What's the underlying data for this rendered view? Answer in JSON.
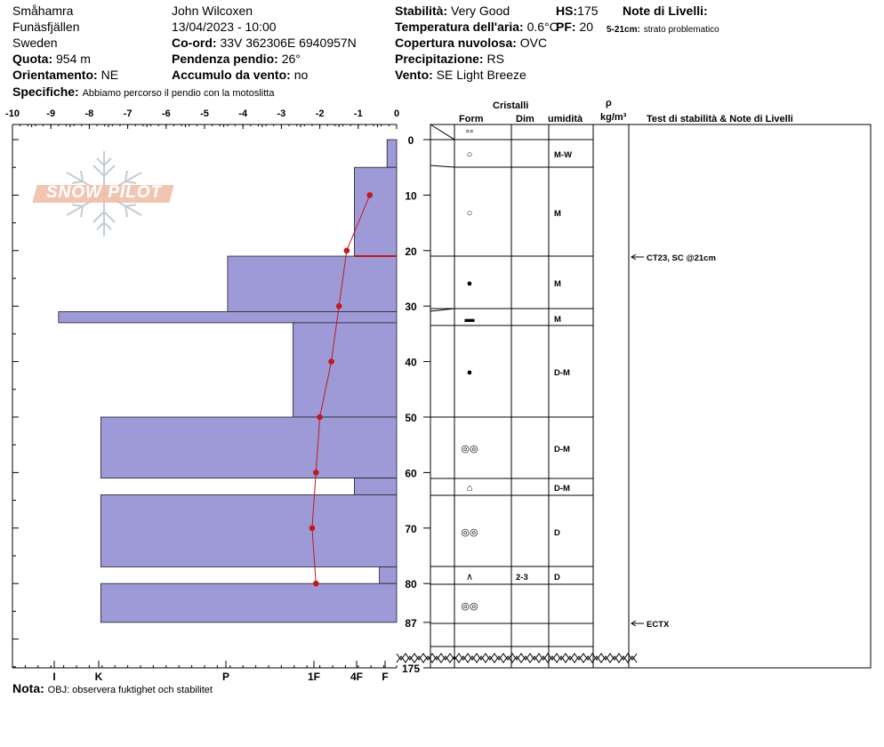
{
  "header": {
    "col1": {
      "location": "Småhamra",
      "region": "Funäsfjällen",
      "country": "Sweden",
      "quota_label": "Quota:",
      "quota_value": "954 m",
      "orient_label": "Orientamento:",
      "orient_value": "NE"
    },
    "col2": {
      "observer": "John Wilcoxen",
      "datetime": "13/04/2023 - 10:00",
      "coord_label": "Co-ord:",
      "coord_value": "33V 362306E 6940957N",
      "slope_label": "Pendenza pendio:",
      "slope_value": "26°",
      "wind_acc_label": "Accumulo da vento:",
      "wind_acc_value": "no"
    },
    "col3": {
      "stab_label": "Stabilità:",
      "stab_value": "Very Good",
      "temp_label": "Temperatura dell'aria:",
      "temp_value": "0.6°C",
      "cloud_label": "Copertura nuvolosa:",
      "cloud_value": "OVC",
      "precip_label": "Precipitazione:",
      "precip_value": "RS",
      "wind_label": "Vento:",
      "wind_value": "SE  Light Breeze"
    },
    "col4": {
      "hs_label": "HS:",
      "hs_value": "175",
      "pf_label": "PF:",
      "pf_value": "20"
    },
    "notes": {
      "title": "Note di Livelli:",
      "entry_depth": "5-21cm:",
      "entry_text": "strato problematico"
    },
    "specifiche_label": "Specifiche:",
    "specifiche_value": "Abbiamo percorso il pendio con la motoslitta",
    "nota_label": "Nota:",
    "nota_value": "OBJ: observera fuktighet och stabilitet"
  },
  "table_headers": {
    "cristalli": "Cristalli",
    "form": "Form",
    "dim": "Dim",
    "umidita": "umidità",
    "rho": "ρ",
    "density_unit": "kg/m³",
    "tests": "Test di stabilità & Note di Livelli"
  },
  "chart_data": {
    "type": "snow_profile",
    "top_axis": {
      "label_values": [
        "-10",
        "-9",
        "-8",
        "-7",
        "-6",
        "-5",
        "-4",
        "-3",
        "-2",
        "-1",
        "0"
      ]
    },
    "hardness_axis": [
      "I",
      "K",
      "P",
      "1F",
      "4F",
      "F"
    ],
    "depth_ticks": [
      "0",
      "10",
      "20",
      "30",
      "40",
      "50",
      "60",
      "70",
      "80",
      "87",
      "175"
    ],
    "hardness_layers": [
      {
        "top": 0,
        "bottom": 5,
        "hardness": 0.25
      },
      {
        "top": 5,
        "bottom": 21,
        "hardness": 1.1
      },
      {
        "top": 21,
        "bottom": 31,
        "hardness": 4.4
      },
      {
        "top": 31,
        "bottom": 33,
        "hardness": 8.8
      },
      {
        "top": 33,
        "bottom": 50,
        "hardness": 2.7
      },
      {
        "top": 50,
        "bottom": 61,
        "hardness": 7.7
      },
      {
        "top": 61,
        "bottom": 64,
        "hardness": 1.1
      },
      {
        "top": 64,
        "bottom": 77,
        "hardness": 7.7
      },
      {
        "top": 77,
        "bottom": 80,
        "hardness": 0.45
      },
      {
        "top": 80,
        "bottom": 87,
        "hardness": 7.7
      }
    ],
    "temperature_profile": [
      {
        "depth": 10,
        "temp": -0.7
      },
      {
        "depth": 20,
        "temp": -1.3
      },
      {
        "depth": 30,
        "temp": -1.5
      },
      {
        "depth": 40,
        "temp": -1.7
      },
      {
        "depth": 50,
        "temp": -2.0
      },
      {
        "depth": 60,
        "temp": -2.1
      },
      {
        "depth": 70,
        "temp": -2.2
      },
      {
        "depth": 80,
        "temp": -2.1
      }
    ],
    "layers": [
      {
        "top": 0,
        "bottom": 3,
        "form": "°°",
        "dim": "",
        "wet": ""
      },
      {
        "top": 3,
        "bottom": 5,
        "form": "",
        "dim": "",
        "wet": ""
      },
      {
        "top": 5,
        "bottom": 21,
        "form": "",
        "dim": "",
        "wet": ""
      },
      {
        "top": 21,
        "bottom": 31,
        "form": "●",
        "dim": "",
        "wet": "M"
      },
      {
        "top": 31,
        "bottom": 33,
        "form": "▬",
        "dim": "",
        "wet": "M"
      },
      {
        "top": 33,
        "bottom": 50,
        "form": "●",
        "dim": "",
        "wet": "D-M"
      },
      {
        "top": 50,
        "bottom": 61,
        "form": "◎◎",
        "dim": "",
        "wet": "D-M"
      },
      {
        "top": 61,
        "bottom": 64,
        "form": "⌂",
        "dim": "",
        "wet": "D-M"
      },
      {
        "top": 64,
        "bottom": 77,
        "form": "◎◎",
        "dim": "",
        "wet": "D"
      },
      {
        "top": 77,
        "bottom": 80,
        "form": "∧",
        "dim": "2-3",
        "wet": "D"
      },
      {
        "top": 80,
        "bottom": 87,
        "form": "◎◎",
        "dim": "",
        "wet": ""
      }
    ],
    "layer_extra": [
      {
        "form": "○",
        "wet": "M-W"
      },
      {
        "form": "○",
        "wet": "M"
      }
    ],
    "tests": [
      {
        "depth": 21,
        "text": "CT23, SC @21cm"
      },
      {
        "depth": 87,
        "text": "ECTX"
      }
    ]
  },
  "colors": {
    "bar_fill": "#9e9ad8",
    "temp_line": "#c0191e",
    "border": "#000000"
  },
  "logo": {
    "text": "SNOW PILOT"
  }
}
